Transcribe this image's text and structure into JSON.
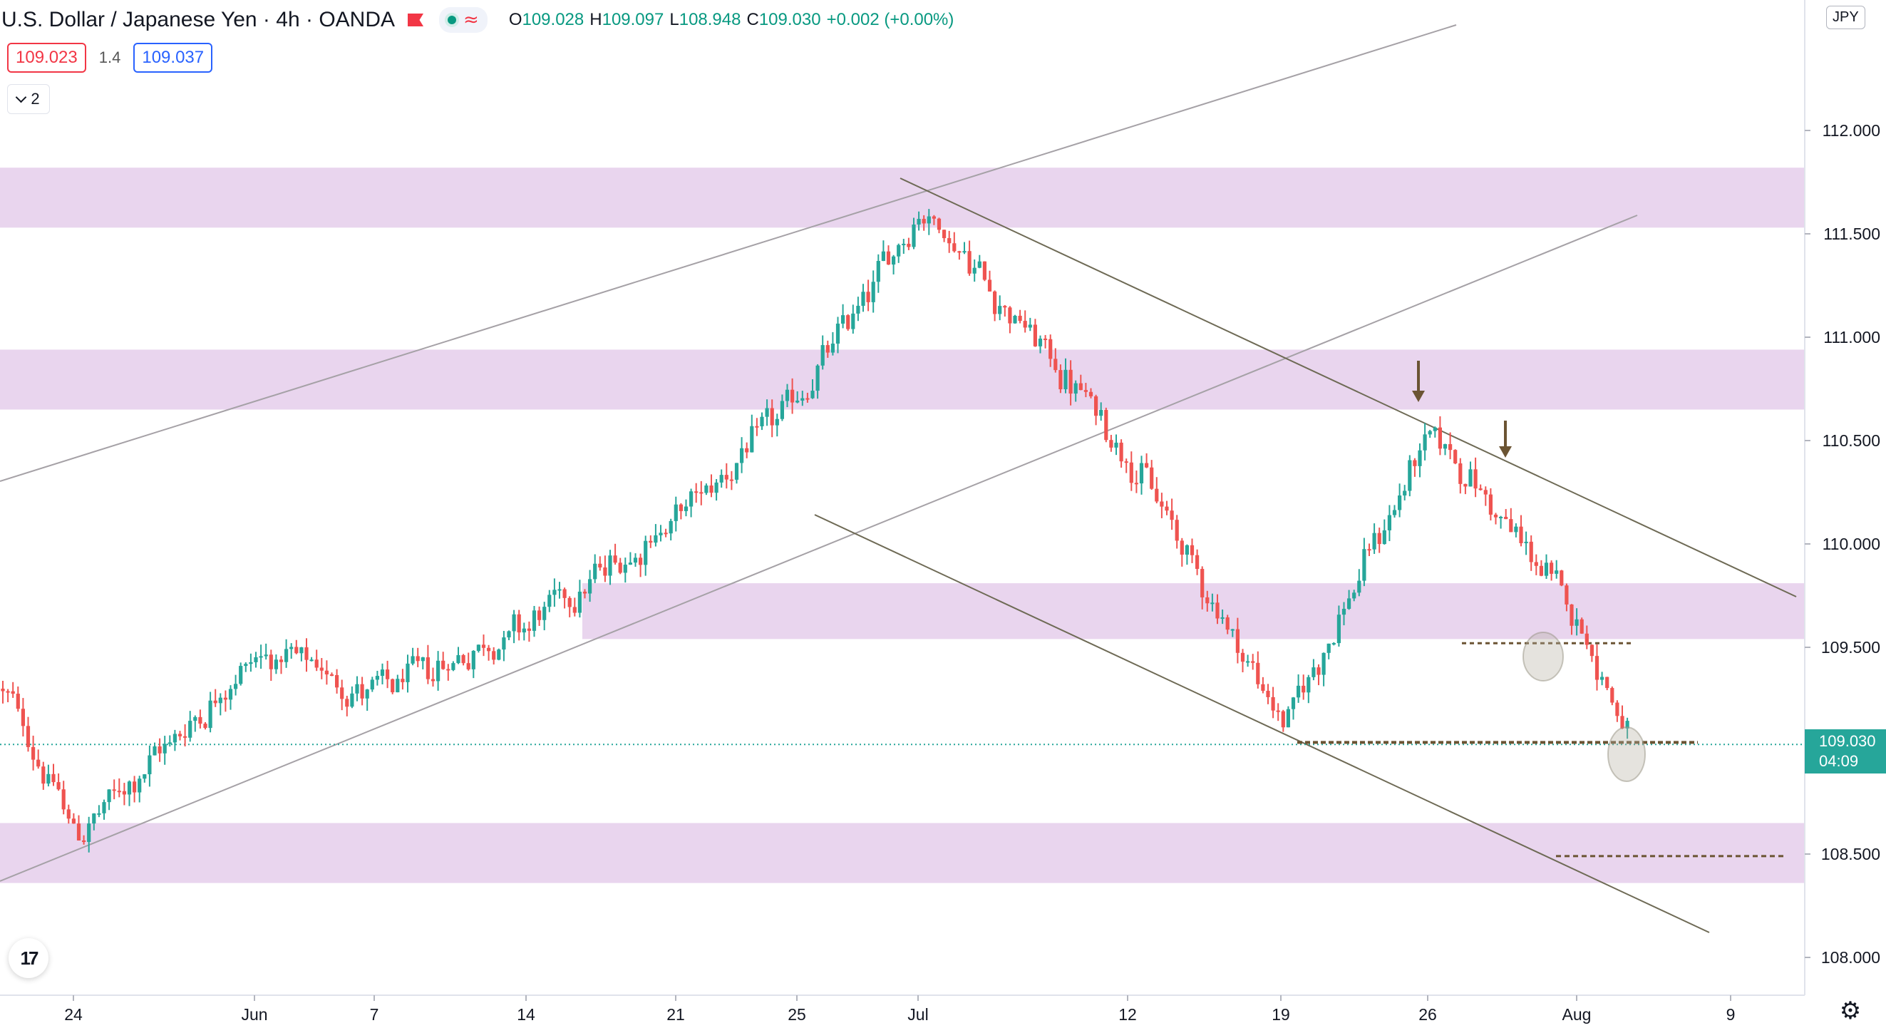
{
  "header": {
    "symbol": "U.S. Dollar / Japanese Yen",
    "interval": "4h",
    "broker": "OANDA",
    "sep": "·",
    "icons": [
      "flag-icon",
      "market-status-dot-icon",
      "wave-icon"
    ],
    "ohlc": {
      "o_label": "O",
      "o": "109.028",
      "h_label": "H",
      "h": "109.097",
      "l_label": "L",
      "l": "108.948",
      "c_label": "C",
      "c": "109.030",
      "change": "+0.002 (+0.00%)"
    }
  },
  "trade": {
    "sell": "109.023",
    "spread": "1.4",
    "buy": "109.037"
  },
  "indicators_toggle": {
    "count": "2"
  },
  "currency_button": "JPY",
  "current_price": {
    "price": "109.030",
    "countdown": "04:09"
  },
  "logo_text": "17",
  "colors": {
    "up": "#26a69a",
    "down": "#ef5350",
    "zone": "#e9d5ee",
    "trendline": "#6e6a55",
    "channel": "#a5a1a6",
    "dashed_level": "#6b5433",
    "price_line": "#26a69a"
  },
  "chart_data": {
    "type": "candlestick",
    "symbol": "USDJPY",
    "timeframe": "4h",
    "ylim": [
      107.9,
      112.35
    ],
    "y_ticks": [
      "112.000",
      "111.500",
      "111.000",
      "110.500",
      "110.000",
      "109.500",
      "109.000",
      "108.500",
      "108.000"
    ],
    "x_ticks": [
      "24",
      "Jun",
      "7",
      "14",
      "21",
      "25",
      "Jul",
      "12",
      "19",
      "26",
      "Aug",
      "9"
    ],
    "last_price": 109.03,
    "zones": [
      {
        "from": 111.53,
        "to": 111.82
      },
      {
        "from": 110.65,
        "to": 110.94
      },
      {
        "from": 109.54,
        "to": 109.81
      },
      {
        "from": 108.36,
        "to": 108.65
      }
    ],
    "horizontal_levels": [
      109.52,
      109.04,
      108.49
    ],
    "anchor_points": [
      {
        "x": "24",
        "price": 108.58
      },
      {
        "x": "Jun",
        "price": 109.48
      },
      {
        "x": "7",
        "price": 109.27
      },
      {
        "x": "14",
        "price": 109.62
      },
      {
        "x": "21",
        "price": 110.14
      },
      {
        "x": "25",
        "price": 110.71
      },
      {
        "x": "Jul",
        "price": 111.64
      },
      {
        "x": "12",
        "price": 110.42
      },
      {
        "x": "19",
        "price": 109.11
      },
      {
        "x": "26",
        "price": 110.56
      },
      {
        "x": "Aug",
        "price": 109.63
      },
      {
        "x": "last",
        "price": 109.03
      }
    ]
  }
}
